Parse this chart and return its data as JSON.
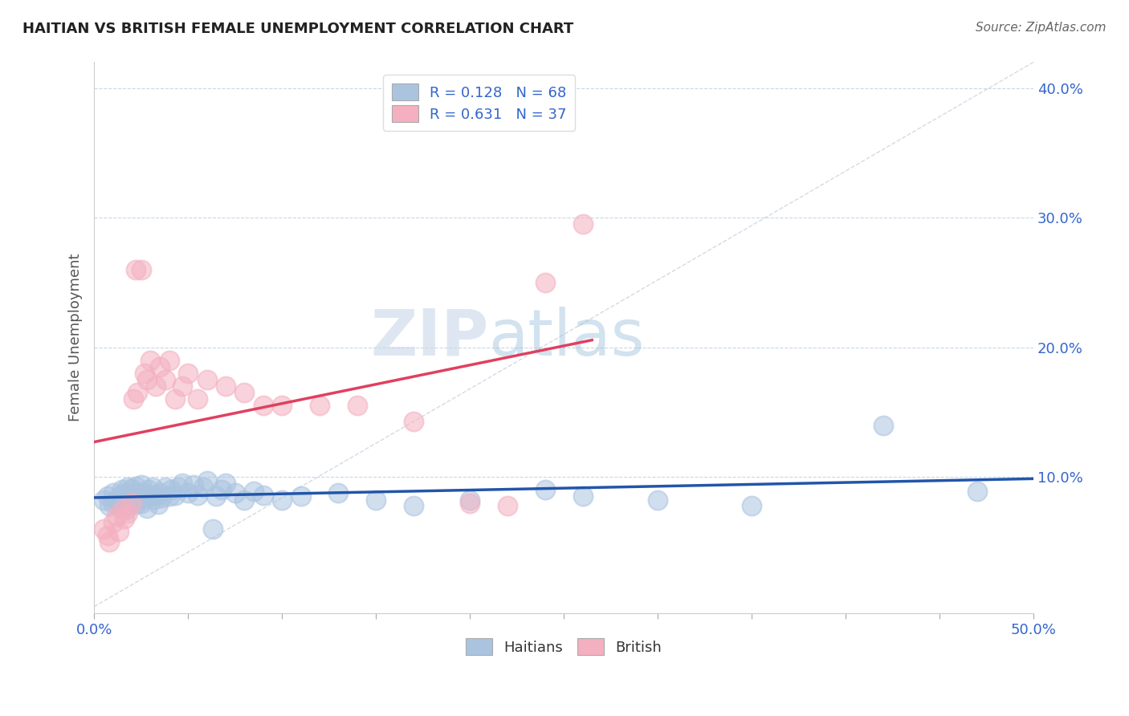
{
  "title": "HAITIAN VS BRITISH FEMALE UNEMPLOYMENT CORRELATION CHART",
  "source_text": "Source: ZipAtlas.com",
  "ylabel": "Female Unemployment",
  "xlim": [
    0.0,
    0.5
  ],
  "ylim": [
    -0.005,
    0.42
  ],
  "ytick_positions": [
    0.1,
    0.2,
    0.3,
    0.4
  ],
  "ytick_labels": [
    "10.0%",
    "20.0%",
    "30.0%",
    "40.0%"
  ],
  "haitian_R": 0.128,
  "haitian_N": 68,
  "british_R": 0.631,
  "british_N": 37,
  "haitian_color": "#aac4e0",
  "british_color": "#f4b0c0",
  "haitian_line_color": "#2255aa",
  "british_line_color": "#e04060",
  "ref_line_color": "#c0ccd8",
  "watermark_zip": "ZIP",
  "watermark_atlas": "atlas",
  "haitian_x": [
    0.005,
    0.007,
    0.008,
    0.01,
    0.01,
    0.012,
    0.013,
    0.014,
    0.015,
    0.015,
    0.016,
    0.016,
    0.017,
    0.018,
    0.018,
    0.019,
    0.02,
    0.02,
    0.021,
    0.022,
    0.022,
    0.023,
    0.023,
    0.024,
    0.025,
    0.025,
    0.026,
    0.027,
    0.028,
    0.029,
    0.03,
    0.031,
    0.032,
    0.033,
    0.034,
    0.035,
    0.036,
    0.038,
    0.04,
    0.041,
    0.043,
    0.045,
    0.047,
    0.05,
    0.053,
    0.055,
    0.058,
    0.06,
    0.063,
    0.065,
    0.068,
    0.07,
    0.075,
    0.08,
    0.085,
    0.09,
    0.1,
    0.11,
    0.13,
    0.15,
    0.17,
    0.2,
    0.24,
    0.26,
    0.3,
    0.35,
    0.42,
    0.47
  ],
  "haitian_y": [
    0.082,
    0.085,
    0.078,
    0.08,
    0.088,
    0.083,
    0.079,
    0.086,
    0.076,
    0.09,
    0.082,
    0.088,
    0.075,
    0.087,
    0.092,
    0.08,
    0.083,
    0.091,
    0.085,
    0.079,
    0.093,
    0.082,
    0.088,
    0.086,
    0.08,
    0.094,
    0.083,
    0.088,
    0.076,
    0.09,
    0.085,
    0.092,
    0.083,
    0.086,
    0.079,
    0.088,
    0.084,
    0.092,
    0.085,
    0.09,
    0.086,
    0.092,
    0.095,
    0.088,
    0.094,
    0.086,
    0.092,
    0.097,
    0.06,
    0.085,
    0.09,
    0.095,
    0.088,
    0.082,
    0.089,
    0.086,
    0.082,
    0.085,
    0.088,
    0.082,
    0.078,
    0.082,
    0.09,
    0.085,
    0.082,
    0.078,
    0.14,
    0.089
  ],
  "british_x": [
    0.005,
    0.007,
    0.008,
    0.01,
    0.012,
    0.013,
    0.015,
    0.016,
    0.018,
    0.02,
    0.021,
    0.022,
    0.023,
    0.025,
    0.027,
    0.028,
    0.03,
    0.033,
    0.035,
    0.038,
    0.04,
    0.043,
    0.047,
    0.05,
    0.055,
    0.06,
    0.07,
    0.08,
    0.09,
    0.1,
    0.12,
    0.14,
    0.17,
    0.2,
    0.22,
    0.24,
    0.26
  ],
  "british_y": [
    0.06,
    0.055,
    0.05,
    0.065,
    0.07,
    0.058,
    0.075,
    0.068,
    0.072,
    0.08,
    0.16,
    0.26,
    0.165,
    0.26,
    0.18,
    0.175,
    0.19,
    0.17,
    0.185,
    0.175,
    0.19,
    0.16,
    0.17,
    0.18,
    0.16,
    0.175,
    0.17,
    0.165,
    0.155,
    0.155,
    0.155,
    0.155,
    0.143,
    0.08,
    0.078,
    0.25,
    0.295
  ]
}
